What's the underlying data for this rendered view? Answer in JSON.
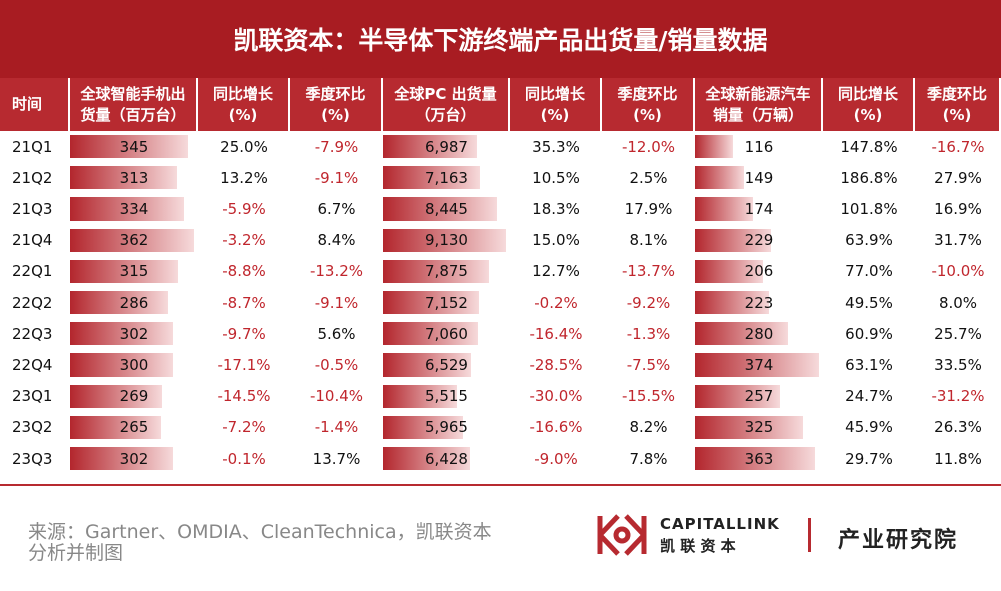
{
  "header": {
    "title": "凯联资本：半导体下游终端产品出货量/销量数据"
  },
  "table": {
    "columns": [
      [
        "时间"
      ],
      [
        "全球智能手机出",
        "货量（百万台）"
      ],
      [
        "同比增长",
        "(%)"
      ],
      [
        "季度环比",
        "(%)"
      ],
      [
        "全球PC 出货量",
        "（万台）"
      ],
      [
        "同比增长",
        "(%)"
      ],
      [
        "季度环比",
        "(%)"
      ],
      [
        "全球新能源汽车",
        "销量（万辆）"
      ],
      [
        "同比增长",
        "(%)"
      ],
      [
        "季度环比",
        "(%)"
      ]
    ],
    "rows": [
      [
        "21Q1",
        345,
        "25.0%",
        "-7.9%",
        {
          "value": 6987,
          "label": "6,987"
        },
        "35.3%",
        "-12.0%",
        116,
        "147.8%",
        "-16.7%"
      ],
      [
        "21Q2",
        313,
        "13.2%",
        "-9.1%",
        {
          "value": 7163,
          "label": "7,163"
        },
        "10.5%",
        "2.5%",
        149,
        "186.8%",
        "27.9%"
      ],
      [
        "21Q3",
        334,
        "-5.9%",
        "6.7%",
        {
          "value": 8445,
          "label": "8,445"
        },
        "18.3%",
        "17.9%",
        174,
        "101.8%",
        "16.9%"
      ],
      [
        "21Q4",
        362,
        "-3.2%",
        "8.4%",
        {
          "value": 9130,
          "label": "9,130"
        },
        "15.0%",
        "8.1%",
        229,
        "63.9%",
        "31.7%"
      ],
      [
        "22Q1",
        315,
        "-8.8%",
        "-13.2%",
        {
          "value": 7875,
          "label": "7,875"
        },
        "12.7%",
        "-13.7%",
        206,
        "77.0%",
        "-10.0%"
      ],
      [
        "22Q2",
        286,
        "-8.7%",
        "-9.1%",
        {
          "value": 7152,
          "label": "7,152"
        },
        "-0.2%",
        "-9.2%",
        223,
        "49.5%",
        "8.0%"
      ],
      [
        "22Q3",
        302,
        "-9.7%",
        "5.6%",
        {
          "value": 7060,
          "label": "7,060"
        },
        "-16.4%",
        "-1.3%",
        280,
        "60.9%",
        "25.7%"
      ],
      [
        "22Q4",
        300,
        "-17.1%",
        "-0.5%",
        {
          "value": 6529,
          "label": "6,529"
        },
        "-28.5%",
        "-7.5%",
        374,
        "63.1%",
        "33.5%"
      ],
      [
        "23Q1",
        269,
        "-14.5%",
        "-10.4%",
        {
          "value": 5515,
          "label": "5,515"
        },
        "-30.0%",
        "-15.5%",
        257,
        "24.7%",
        "-31.2%"
      ],
      [
        "23Q2",
        265,
        "-7.2%",
        "-1.4%",
        {
          "value": 5965,
          "label": "5,965"
        },
        "-16.6%",
        "8.2%",
        325,
        "45.9%",
        "26.3%"
      ],
      [
        "23Q3",
        302,
        "-0.1%",
        "13.7%",
        {
          "value": 6428,
          "label": "6,428"
        },
        "-9.0%",
        "7.8%",
        363,
        "29.7%",
        "11.8%"
      ]
    ]
  },
  "footer": {
    "source": [
      "来源：Gartner、OMDIA、CleanTechnica，凯联资本",
      "分析并制图"
    ],
    "logo_en": "CAPITALLINK",
    "logo_cn": "凯 联 资 本",
    "dept": "产业研究院"
  }
}
